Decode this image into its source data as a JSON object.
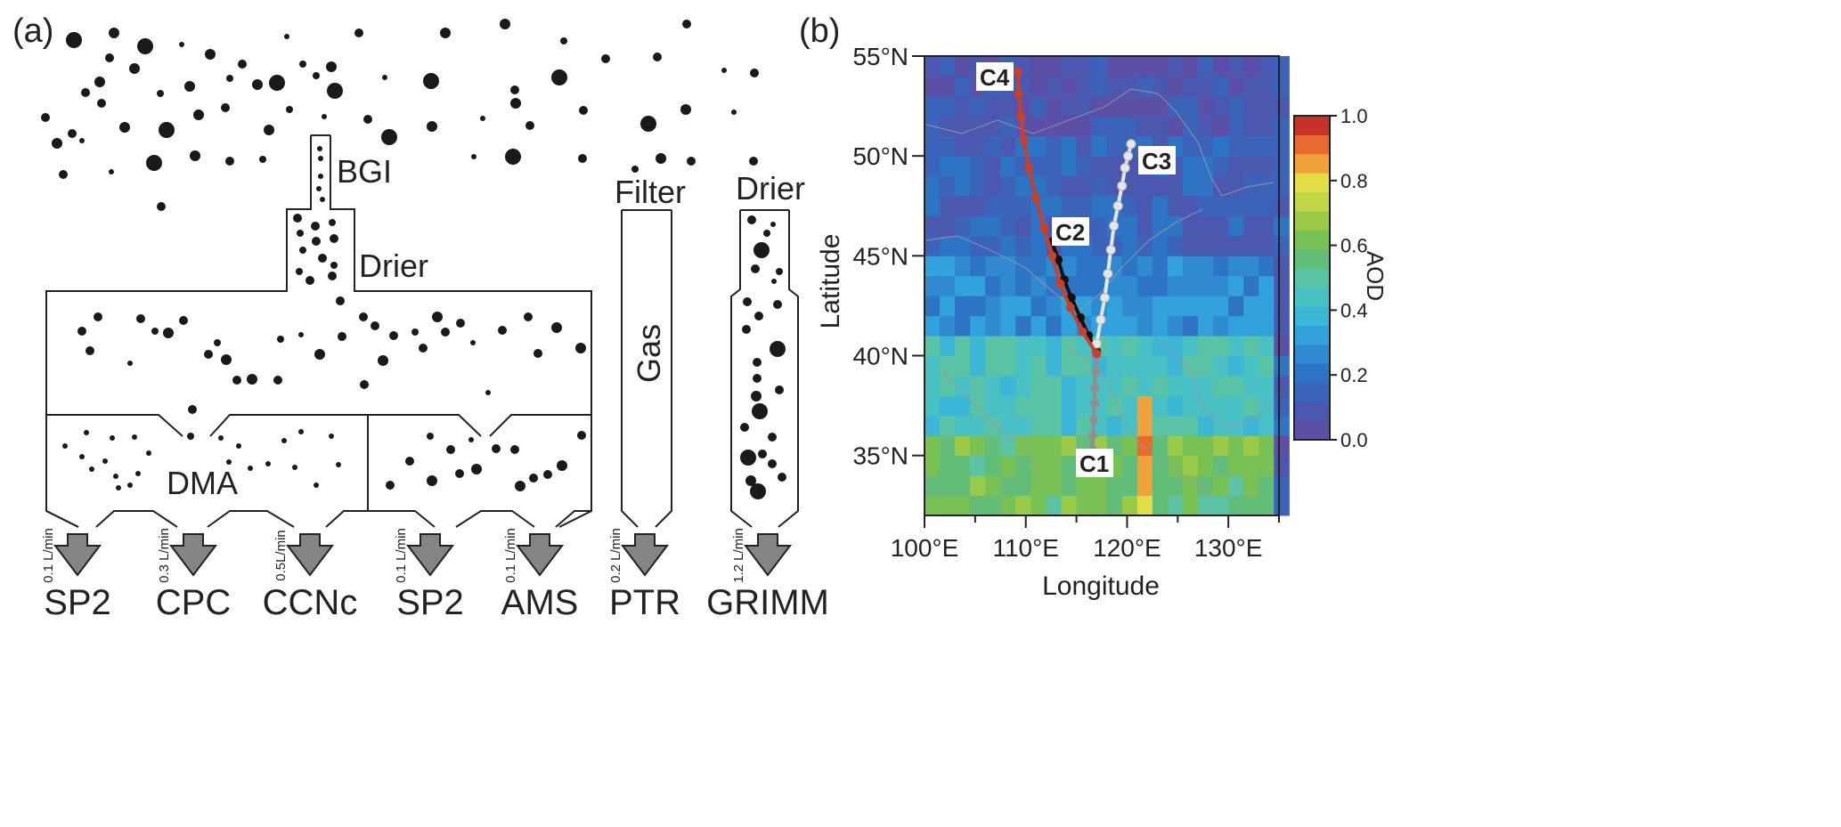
{
  "panel_a": {
    "label": "(a)",
    "inlet": "BGI",
    "drier_main": "Drier",
    "dma": "DMA",
    "filter": "Filter",
    "gas": "Gas",
    "drier_side": "Drier",
    "outlets": [
      {
        "flow": "0.1 L/min",
        "name": "SP2"
      },
      {
        "flow": "0.3 L/min",
        "name": "CPC"
      },
      {
        "flow": "0.5L/min",
        "name": "CCNc"
      },
      {
        "flow": "0.1 L/min",
        "name": "SP2"
      },
      {
        "flow": "0.1 L/min",
        "name": "AMS"
      },
      {
        "flow": "0.2 L/min",
        "name": "PTR"
      },
      {
        "flow": "1.2 L/min",
        "name": "GRIMM"
      }
    ]
  },
  "panel_b": {
    "label": "(b)",
    "xlabel": "Longitude",
    "ylabel": "Latitude",
    "xticks": [
      "100°E",
      "110°E",
      "120°E",
      "130°E"
    ],
    "yticks": [
      "35°N",
      "40°N",
      "45°N",
      "50°N",
      "55°N"
    ],
    "colorbar": {
      "label": "AOD",
      "ticks": [
        "0.0",
        "0.2",
        "0.4",
        "0.6",
        "0.8",
        "1.0"
      ],
      "colors": [
        "#5b4fa6",
        "#4a58b0",
        "#3c63ba",
        "#2e74c5",
        "#2f8ad2",
        "#31a2db",
        "#3bb6d6",
        "#49c1c4",
        "#5bc3a5",
        "#62bd78",
        "#78c154",
        "#99cb48",
        "#c3d648",
        "#e2df46",
        "#efa33a",
        "#e86a2e",
        "#c9302a"
      ]
    },
    "trajectories": [
      {
        "name": "C1",
        "color": "#8f8f8f",
        "lon": [
          117.0,
          116.9,
          116.8,
          116.8,
          116.7,
          116.6,
          116.6,
          116.5
        ],
        "lat": [
          40.0,
          39.2,
          38.4,
          37.6,
          36.8,
          36.0,
          35.3,
          34.6
        ]
      },
      {
        "name": "C2",
        "color": "#111111",
        "lon": [
          117.0,
          116.2,
          115.4,
          114.5,
          113.8,
          113.2,
          112.6
        ],
        "lat": [
          40.2,
          41.0,
          41.9,
          42.9,
          43.8,
          44.8,
          45.7
        ]
      },
      {
        "name": "C3",
        "color": "#e6e6e6",
        "lon": [
          117.0,
          117.4,
          117.8,
          118.1,
          118.4,
          118.7,
          119.1,
          119.5,
          119.8,
          120.1,
          120.4
        ],
        "lat": [
          40.6,
          41.8,
          42.9,
          44.1,
          45.3,
          46.5,
          47.5,
          48.5,
          49.4,
          50.0,
          50.6
        ]
      },
      {
        "name": "C4",
        "color": "#c8422b",
        "lon": [
          117.0,
          115.6,
          114.4,
          113.4,
          112.6,
          111.8,
          111.0,
          110.3,
          109.8,
          109.5,
          109.3,
          109.2
        ],
        "lat": [
          40.1,
          41.2,
          42.4,
          43.6,
          45.0,
          46.4,
          47.9,
          49.4,
          50.8,
          52.0,
          53.1,
          54.2
        ]
      }
    ]
  },
  "chart_data": {
    "type": "heatmap",
    "xlabel": "Longitude",
    "ylabel": "Latitude",
    "xlim": [
      100,
      135
    ],
    "ylim": [
      32,
      55
    ],
    "colorbar_label": "AOD",
    "colorbar_range": [
      0.0,
      1.0
    ],
    "series": [
      {
        "name": "C1",
        "lon": [
          117.0,
          116.9,
          116.8,
          116.8,
          116.7,
          116.6,
          116.6,
          116.5
        ],
        "lat": [
          40.0,
          39.2,
          38.4,
          37.6,
          36.8,
          36.0,
          35.3,
          34.6
        ]
      },
      {
        "name": "C2",
        "lon": [
          117.0,
          116.2,
          115.4,
          114.5,
          113.8,
          113.2,
          112.6
        ],
        "lat": [
          40.2,
          41.0,
          41.9,
          42.9,
          43.8,
          44.8,
          45.7
        ]
      },
      {
        "name": "C3",
        "lon": [
          117.0,
          117.4,
          117.8,
          118.1,
          118.4,
          118.7,
          119.1,
          119.5,
          119.8,
          120.1,
          120.4
        ],
        "lat": [
          40.6,
          41.8,
          42.9,
          44.1,
          45.3,
          46.5,
          47.5,
          48.5,
          49.4,
          50.0,
          50.6
        ]
      },
      {
        "name": "C4",
        "lon": [
          117.0,
          115.6,
          114.4,
          113.4,
          112.6,
          111.8,
          111.0,
          110.3,
          109.8,
          109.5,
          109.3,
          109.2
        ],
        "lat": [
          40.1,
          41.2,
          42.4,
          43.6,
          45.0,
          46.4,
          47.9,
          49.4,
          50.8,
          52.0,
          53.1,
          54.2
        ]
      }
    ],
    "aod_zones": [
      {
        "lon": [
          100,
          135
        ],
        "lat": [
          51,
          55
        ],
        "aod": 0.05
      },
      {
        "lon": [
          100,
          135
        ],
        "lat": [
          45,
          51
        ],
        "aod": 0.12
      },
      {
        "lon": [
          100,
          135
        ],
        "lat": [
          41,
          45
        ],
        "aod": 0.25
      },
      {
        "lon": [
          100,
          135
        ],
        "lat": [
          36,
          41
        ],
        "aod": 0.45
      },
      {
        "lon": [
          100,
          135
        ],
        "lat": [
          32,
          36
        ],
        "aod": 0.6
      },
      {
        "lon": [
          120.5,
          123
        ],
        "lat": [
          32,
          38
        ],
        "aod": 0.85
      },
      {
        "lon": [
          122,
          123
        ],
        "lat": [
          32,
          35
        ],
        "aod": 1.0
      }
    ]
  }
}
